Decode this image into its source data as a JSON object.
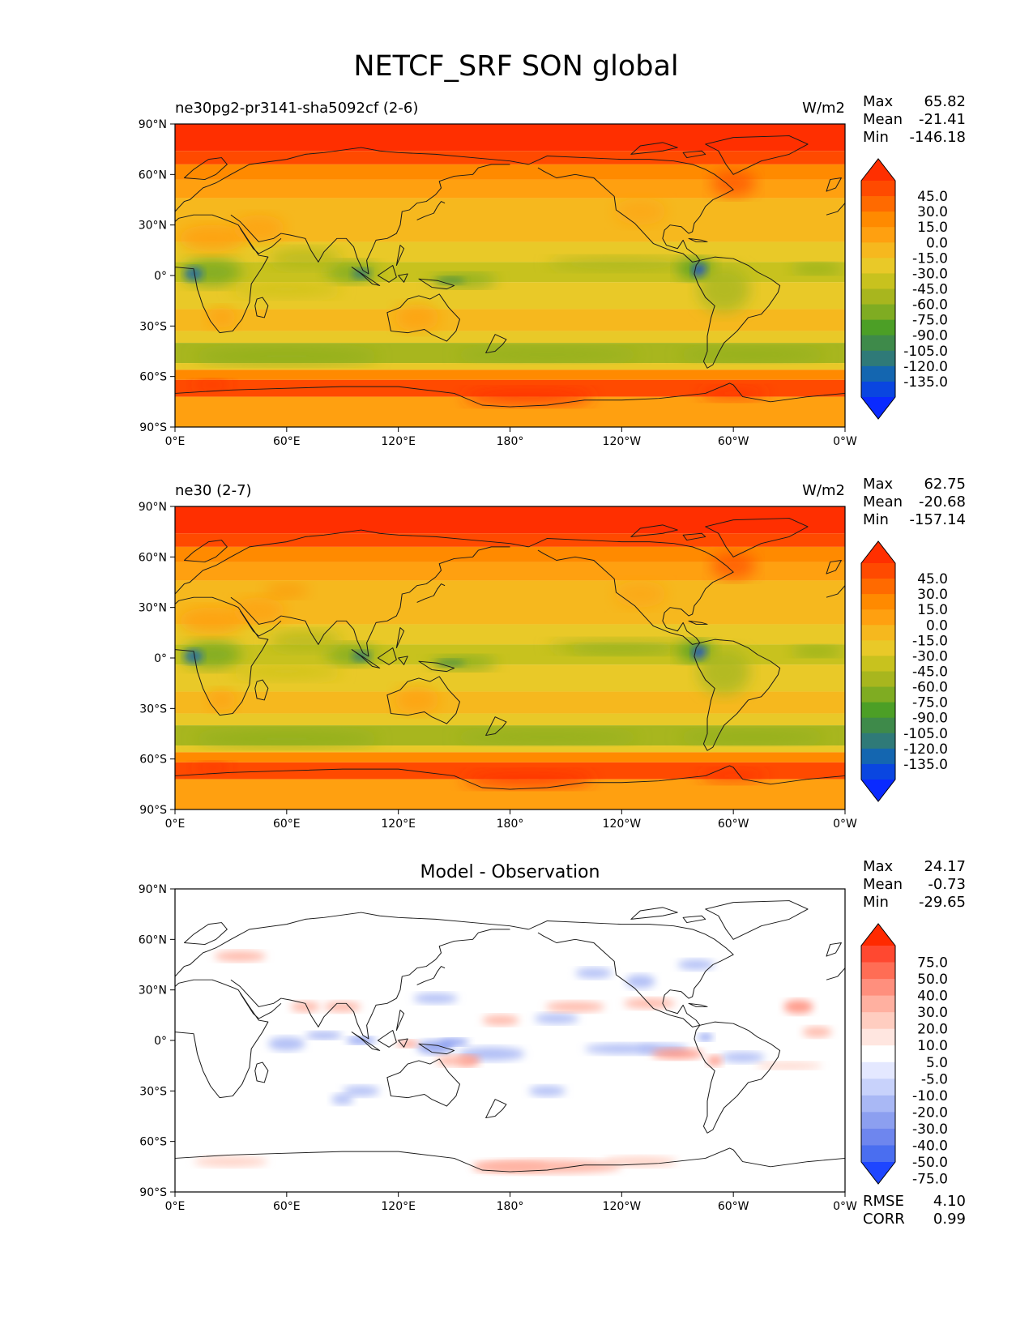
{
  "figure_title": "NETCF_SRF SON global",
  "panels": [
    {
      "title_left": "ne30pg2-pr3141-sha5092cf (2-6)",
      "title_center": "",
      "units": "W/m2",
      "stats": [
        {
          "label": "Max",
          "value": "65.82"
        },
        {
          "label": "Mean",
          "value": "-21.41"
        },
        {
          "label": "Min",
          "value": "-146.18"
        }
      ],
      "colorbar_labels": [
        "45.0",
        "30.0",
        "15.0",
        "0.0",
        "-15.0",
        "-30.0",
        "-45.0",
        "-60.0",
        "-75.0",
        "-90.0",
        "-105.0",
        "-120.0",
        "-135.0"
      ],
      "colorbar_colors": [
        "#ff2f00",
        "#ff4a00",
        "#ff6a00",
        "#ff8a00",
        "#ffa010",
        "#f6b81e",
        "#e9c928",
        "#c8c21e",
        "#a8b61e",
        "#7fac22",
        "#4c9f26",
        "#3e8a4a",
        "#2f7a78",
        "#1466b0",
        "#0a46e0",
        "#0a2aff"
      ],
      "map_field": "model"
    },
    {
      "title_left": "ne30 (2-7)",
      "title_center": "",
      "units": "W/m2",
      "stats": [
        {
          "label": "Max",
          "value": "62.75"
        },
        {
          "label": "Mean",
          "value": "-20.68"
        },
        {
          "label": "Min",
          "value": "-157.14"
        }
      ],
      "colorbar_labels": [
        "45.0",
        "30.0",
        "15.0",
        "0.0",
        "-15.0",
        "-30.0",
        "-45.0",
        "-60.0",
        "-75.0",
        "-90.0",
        "-105.0",
        "-120.0",
        "-135.0"
      ],
      "colorbar_colors": [
        "#ff2f00",
        "#ff4a00",
        "#ff6a00",
        "#ff8a00",
        "#ffa010",
        "#f6b81e",
        "#e9c928",
        "#c8c21e",
        "#a8b61e",
        "#7fac22",
        "#4c9f26",
        "#3e8a4a",
        "#2f7a78",
        "#1466b0",
        "#0a46e0",
        "#0a2aff"
      ],
      "map_field": "reference"
    },
    {
      "title_left": "",
      "title_center": "Model - Observation",
      "units": "",
      "stats": [
        {
          "label": "Max",
          "value": "24.17"
        },
        {
          "label": "Mean",
          "value": "-0.73"
        },
        {
          "label": "Min",
          "value": "-29.65"
        }
      ],
      "colorbar_labels": [
        "75.0",
        "50.0",
        "40.0",
        "30.0",
        "20.0",
        "10.0",
        "5.0",
        "-5.0",
        "-10.0",
        "-20.0",
        "-30.0",
        "-40.0",
        "-50.0",
        "-75.0"
      ],
      "colorbar_colors": [
        "#ff2a00",
        "#ff4830",
        "#ff6d55",
        "#ff8f7d",
        "#ffb0a0",
        "#ffcdc0",
        "#ffe6e0",
        "#ffffff",
        "#e4e8ff",
        "#c8d2fb",
        "#a9b8f5",
        "#8c9ff0",
        "#6e86ee",
        "#4a6ef0",
        "#1e46ff"
      ],
      "map_field": "difference",
      "extra_stats": [
        {
          "label": "RMSE",
          "value": "4.10"
        },
        {
          "label": "CORR",
          "value": "0.99"
        }
      ]
    }
  ],
  "x_ticks": [
    "0°E",
    "60°E",
    "120°E",
    "180°",
    "120°W",
    "60°W",
    "0°W"
  ],
  "y_ticks": [
    "90°N",
    "60°N",
    "30°N",
    "0°",
    "30°S",
    "60°S",
    "90°S"
  ],
  "chart_data": [
    {
      "type": "heatmap",
      "title": "ne30pg2-pr3141-sha5092cf (2-6)",
      "units": "W/m2",
      "xlim": [
        0,
        360
      ],
      "ylim": [
        -90,
        90
      ],
      "x_ticks": [
        "0°E",
        "60°E",
        "120°E",
        "180°",
        "120°W",
        "60°W",
        "0°W"
      ],
      "y_ticks": [
        "90°N",
        "60°N",
        "30°N",
        "0°",
        "30°S",
        "60°S",
        "90°S"
      ],
      "levels": [
        -135,
        -120,
        -105,
        -90,
        -75,
        -60,
        -45,
        -30,
        -15,
        0,
        15,
        30,
        45
      ],
      "max": 65.82,
      "mean": -21.41,
      "min": -146.18
    },
    {
      "type": "heatmap",
      "title": "ne30 (2-7)",
      "units": "W/m2",
      "xlim": [
        0,
        360
      ],
      "ylim": [
        -90,
        90
      ],
      "x_ticks": [
        "0°E",
        "60°E",
        "120°E",
        "180°",
        "120°W",
        "60°W",
        "0°W"
      ],
      "y_ticks": [
        "90°N",
        "60°N",
        "30°N",
        "0°",
        "30°S",
        "60°S",
        "90°S"
      ],
      "levels": [
        -135,
        -120,
        -105,
        -90,
        -75,
        -60,
        -45,
        -30,
        -15,
        0,
        15,
        30,
        45
      ],
      "max": 62.75,
      "mean": -20.68,
      "min": -157.14
    },
    {
      "type": "heatmap",
      "title": "Model - Observation",
      "xlim": [
        0,
        360
      ],
      "ylim": [
        -90,
        90
      ],
      "x_ticks": [
        "0°E",
        "60°E",
        "120°E",
        "180°",
        "120°W",
        "60°W",
        "0°W"
      ],
      "y_ticks": [
        "90°N",
        "60°N",
        "30°N",
        "0°",
        "30°S",
        "60°S",
        "90°S"
      ],
      "levels": [
        -75,
        -50,
        -40,
        -30,
        -20,
        -10,
        -5,
        5,
        10,
        20,
        30,
        40,
        50,
        75
      ],
      "max": 24.17,
      "mean": -0.73,
      "min": -29.65,
      "rmse": 4.1,
      "corr": 0.99
    }
  ]
}
